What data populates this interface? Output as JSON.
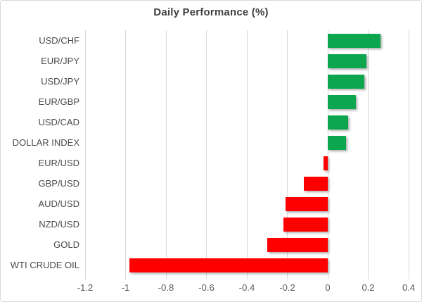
{
  "chart_data": {
    "type": "bar",
    "orientation": "horizontal",
    "title": "Daily Performance (%)",
    "categories": [
      "USD/CHF",
      "EUR/JPY",
      "USD/JPY",
      "EUR/GBP",
      "USD/CAD",
      "DOLLAR INDEX",
      "EUR/USD",
      "GBP/USD",
      "AUD/USD",
      "NZD/USD",
      "GOLD",
      "WTI CRUDE OIL"
    ],
    "values": [
      0.26,
      0.19,
      0.18,
      0.14,
      0.1,
      0.09,
      -0.02,
      -0.12,
      -0.21,
      -0.22,
      -0.3,
      -0.98
    ],
    "xlabel": "",
    "ylabel": "",
    "xlim": [
      -1.2,
      0.4
    ],
    "x_ticks": [
      -1.2,
      -1,
      -0.8,
      -0.6,
      -0.4,
      -0.2,
      0,
      0.2,
      0.4
    ],
    "x_tick_labels": [
      "-1.2",
      "-1",
      "-0.8",
      "-0.6",
      "-0.4",
      "-0.2",
      "0",
      "0.2",
      "0.4"
    ],
    "grid": "vertical-gridlines-on",
    "legend": false,
    "colors": {
      "positive": "#0ca64f",
      "negative": "#ff0000",
      "gridline": "#d9d9d9",
      "title_text": "#404040",
      "axis_text": "#595959"
    }
  }
}
